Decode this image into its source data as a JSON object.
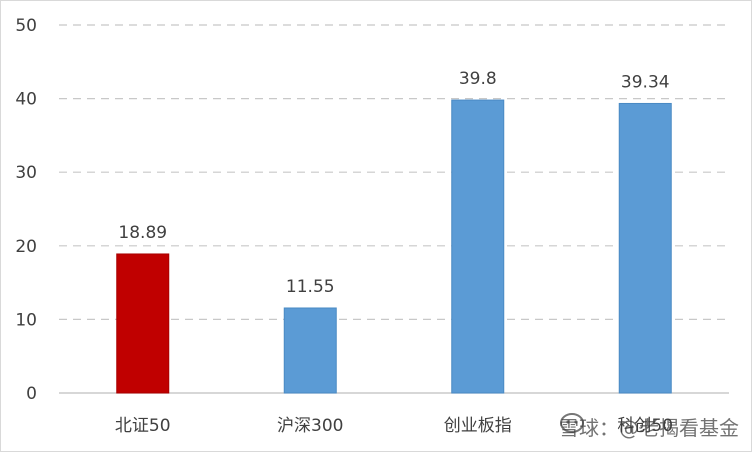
{
  "chart_data": {
    "type": "bar",
    "categories": [
      "北证50",
      "沪深300",
      "创业板指",
      "科创50"
    ],
    "values": [
      18.89,
      11.55,
      39.8,
      39.34
    ],
    "data_labels": [
      "18.89",
      "11.55",
      "39.8",
      "39.34"
    ],
    "colors": [
      "#c00000",
      "#5b9bd5",
      "#5b9bd5",
      "#5b9bd5"
    ],
    "ylim": [
      0,
      50
    ],
    "yticks": [
      0,
      10,
      20,
      30,
      40,
      50
    ],
    "grid": true,
    "title": "",
    "xlabel": "",
    "ylabel": ""
  },
  "watermark": {
    "text": "雪球：@老揭看基金",
    "icon": "snowball-logo-icon"
  }
}
